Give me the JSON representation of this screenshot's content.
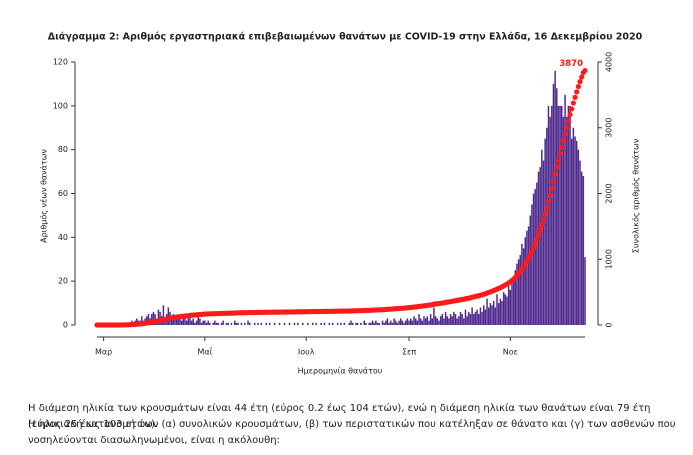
{
  "chart_data": {
    "type": "bar_line",
    "title": "Διάγραμμα 2: Αριθμός εργαστηριακά επιβεβαιωμένων θανάτων με COVID-19 στην Ελλάδα, 16 Δεκεμβρίου 2020",
    "x_label": "Ημερομηνία θανάτου",
    "y_label": "Αριθμός νέων θανάτων",
    "y2_label": "Συνολικός αριθμός θανάτων",
    "categories": [
      null,
      null,
      null,
      null,
      "Μαρ",
      null,
      null,
      null,
      null,
      null,
      null,
      null,
      null,
      null,
      null,
      null,
      null,
      null,
      null,
      null,
      null,
      null,
      null,
      null,
      null,
      null,
      null,
      null,
      null,
      null,
      null,
      null,
      null,
      null,
      null,
      null,
      null,
      null,
      null,
      null,
      null,
      null,
      null,
      null,
      null,
      null,
      null,
      null,
      null,
      null,
      null,
      null,
      null,
      null,
      null,
      null,
      null,
      null,
      null,
      null,
      null,
      null,
      null,
      null,
      null,
      "Μαΐ",
      null,
      null,
      null,
      null,
      null,
      null,
      null,
      null,
      null,
      null,
      null,
      null,
      null,
      null,
      null,
      null,
      null,
      null,
      null,
      null,
      null,
      null,
      null,
      null,
      null,
      null,
      null,
      null,
      null,
      null,
      null,
      null,
      null,
      null,
      null,
      null,
      null,
      null,
      null,
      null,
      null,
      null,
      null,
      null,
      null,
      null,
      null,
      null,
      null,
      null,
      null,
      null,
      null,
      null,
      null,
      null,
      null,
      null,
      null,
      null,
      "Ιουλ",
      null,
      null,
      null,
      null,
      null,
      null,
      null,
      null,
      null,
      null,
      null,
      null,
      null,
      null,
      null,
      null,
      null,
      null,
      null,
      null,
      null,
      null,
      null,
      null,
      null,
      null,
      null,
      null,
      null,
      null,
      null,
      null,
      null,
      null,
      null,
      null,
      null,
      null,
      null,
      null,
      null,
      null,
      null,
      null,
      null,
      null,
      null,
      null,
      null,
      null,
      null,
      null,
      null,
      null,
      null,
      null,
      null,
      null,
      null,
      null,
      null,
      "Σεπ",
      null,
      null,
      null,
      null,
      null,
      null,
      null,
      null,
      null,
      null,
      null,
      null,
      null,
      null,
      null,
      null,
      null,
      null,
      null,
      null,
      null,
      null,
      null,
      null,
      null,
      null,
      null,
      null,
      null,
      null,
      null,
      null,
      null,
      null,
      null,
      null,
      null,
      null,
      null,
      null,
      null,
      null,
      null,
      null,
      null,
      null,
      null,
      null,
      null,
      null,
      null,
      null,
      null,
      null,
      null,
      null,
      null,
      null,
      null,
      null,
      "Νοε",
      null,
      null,
      null,
      null,
      null,
      null,
      null,
      null,
      null,
      null,
      null,
      null,
      null,
      null,
      null,
      null,
      null,
      null,
      null,
      null,
      null,
      null,
      null,
      null,
      null,
      null,
      null,
      null,
      null,
      null,
      null,
      null,
      null,
      null,
      null,
      null,
      null,
      null,
      null,
      null,
      null,
      null,
      null,
      null,
      null
    ],
    "series": [
      {
        "color": "#4f2a8c",
        "values": [
          0,
          0,
          0,
          0,
          0,
          0,
          0,
          0,
          0,
          0,
          0,
          0,
          0,
          0,
          1,
          0,
          1,
          1,
          0,
          1,
          1,
          2,
          1,
          2,
          3,
          2,
          2,
          4,
          2,
          3,
          4,
          5,
          3,
          5,
          6,
          5,
          3,
          7,
          6,
          4,
          9,
          2,
          5,
          8,
          6,
          4,
          5,
          3,
          4,
          4,
          3,
          2,
          5,
          3,
          2,
          3,
          4,
          2,
          3,
          1,
          2,
          4,
          3,
          1,
          2,
          2,
          1,
          2,
          1,
          0,
          1,
          2,
          1,
          1,
          0,
          1,
          2,
          0,
          1,
          1,
          0,
          1,
          0,
          2,
          1,
          1,
          0,
          1,
          0,
          1,
          0,
          2,
          1,
          0,
          0,
          1,
          0,
          1,
          0,
          1,
          0,
          0,
          1,
          0,
          1,
          0,
          0,
          1,
          0,
          0,
          1,
          0,
          0,
          1,
          0,
          0,
          1,
          0,
          0,
          1,
          0,
          1,
          0,
          0,
          1,
          0,
          0,
          1,
          0,
          0,
          1,
          0,
          1,
          0,
          0,
          1,
          0,
          1,
          0,
          0,
          1,
          0,
          1,
          0,
          0,
          1,
          0,
          1,
          0,
          1,
          0,
          0,
          1,
          2,
          1,
          0,
          1,
          1,
          0,
          1,
          0,
          2,
          1,
          0,
          1,
          1,
          2,
          1,
          2,
          1,
          1,
          0,
          2,
          1,
          2,
          3,
          1,
          2,
          1,
          3,
          2,
          1,
          2,
          3,
          2,
          1,
          2,
          3,
          2,
          3,
          2,
          4,
          3,
          2,
          5,
          3,
          2,
          4,
          3,
          4,
          2,
          5,
          3,
          8,
          4,
          3,
          2,
          4,
          5,
          3,
          6,
          4,
          3,
          5,
          4,
          6,
          5,
          3,
          4,
          6,
          5,
          3,
          7,
          4,
          6,
          5,
          8,
          5,
          6,
          7,
          5,
          8,
          6,
          9,
          7,
          12,
          8,
          10,
          9,
          11,
          8,
          14,
          10,
          12,
          11,
          15,
          14,
          13,
          18,
          16,
          20,
          22,
          25,
          28,
          30,
          32,
          37,
          35,
          40,
          43,
          45,
          50,
          55,
          60,
          62,
          65,
          70,
          72,
          80,
          75,
          85,
          90,
          100,
          95,
          100,
          110,
          116,
          108,
          100,
          100,
          100,
          95,
          105,
          95,
          100,
          100,
          85,
          90,
          86,
          84,
          80,
          75,
          70,
          68,
          31
        ]
      },
      {
        "color": "#ff1a1a",
        "axis": "y2",
        "values": [
          0,
          0,
          0,
          0,
          0,
          0,
          0,
          0,
          0,
          0,
          0,
          0,
          0,
          0,
          1,
          1,
          2,
          3,
          3,
          4,
          5,
          7,
          8,
          10,
          13,
          15,
          17,
          21,
          23,
          26,
          30,
          35,
          38,
          43,
          49,
          54,
          57,
          64,
          70,
          74,
          83,
          85,
          90,
          98,
          104,
          108,
          113,
          116,
          120,
          124,
          127,
          129,
          134,
          137,
          139,
          142,
          146,
          148,
          151,
          152,
          154,
          158,
          161,
          162,
          164,
          166,
          167,
          169,
          170,
          170,
          171,
          173,
          174,
          175,
          175,
          176,
          178,
          178,
          179,
          180,
          180,
          181,
          181,
          183,
          184,
          185,
          185,
          186,
          186,
          187,
          187,
          189,
          190,
          190,
          190,
          191,
          191,
          192,
          192,
          193,
          193,
          193,
          194,
          194,
          195,
          195,
          195,
          196,
          196,
          196,
          197,
          197,
          197,
          198,
          198,
          198,
          199,
          199,
          199,
          200,
          200,
          201,
          201,
          201,
          202,
          202,
          202,
          203,
          203,
          203,
          204,
          204,
          205,
          205,
          205,
          206,
          206,
          207,
          207,
          207,
          208,
          208,
          209,
          209,
          209,
          210,
          210,
          211,
          211,
          212,
          212,
          212,
          213,
          215,
          216,
          216,
          217,
          218,
          218,
          219,
          219,
          221,
          222,
          222,
          223,
          224,
          226,
          227,
          229,
          230,
          231,
          231,
          233,
          234,
          236,
          239,
          240,
          242,
          243,
          246,
          248,
          249,
          251,
          254,
          256,
          257,
          259,
          262,
          264,
          267,
          269,
          273,
          276,
          278,
          283,
          286,
          288,
          292,
          295,
          299,
          301,
          306,
          309,
          317,
          321,
          324,
          326,
          330,
          335,
          338,
          344,
          348,
          351,
          356,
          360,
          366,
          371,
          374,
          378,
          384,
          389,
          392,
          399,
          403,
          409,
          414,
          422,
          427,
          433,
          440,
          445,
          453,
          459,
          468,
          475,
          487,
          495,
          505,
          514,
          525,
          533,
          547,
          557,
          569,
          580,
          595,
          609,
          622,
          640,
          656,
          676,
          698,
          723,
          751,
          781,
          813,
          850,
          885,
          925,
          968,
          1013,
          1063,
          1118,
          1178,
          1240,
          1305,
          1375,
          1447,
          1527,
          1602,
          1687,
          1777,
          1877,
          1972,
          2072,
          2182,
          2298,
          2406,
          2506,
          2606,
          2706,
          2801,
          2906,
          3001,
          3101,
          3201,
          3286,
          3376,
          3462,
          3546,
          3626,
          3701,
          3771,
          3839,
          3870
        ]
      }
    ],
    "ylim": [
      0,
      120
    ],
    "yticks": [
      0,
      20,
      40,
      60,
      80,
      100,
      120
    ],
    "y2lim": [
      0,
      4000
    ],
    "y2ticks": [
      0,
      1000,
      2000,
      3000,
      4000
    ],
    "grid": false
  },
  "paragraphs": [
    "Η διάμεση ηλικία των κρουσμάτων είναι 44 έτη (εύρος 0.2 έως 104 ετών), ενώ η διάμεση ηλικία των θανάτων είναι 79 έτη (εύρος 25 έως 103 ετών).",
    "Η ηλικιακή κατανομή των (α) συνολικών κρουσμάτων, (β) των περιστατικών που κατέληξαν σε θάνατο και (γ) των ασθενών που νοσηλεύονται διασωληνωμένοι, είναι η ακόλουθη:"
  ]
}
